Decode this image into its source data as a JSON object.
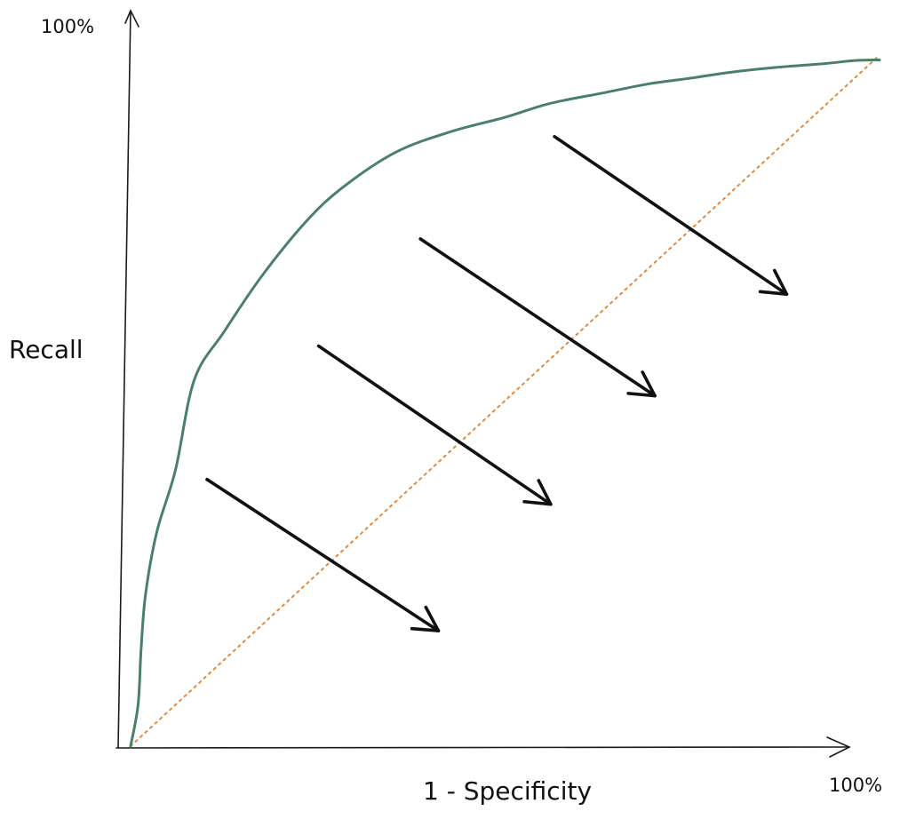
{
  "chart_data": {
    "type": "line",
    "xlabel": "1 - Specificity",
    "ylabel": "Recall",
    "x_tick_max_label": "100%",
    "y_tick_max_label": "100%",
    "xlim": [
      0,
      1
    ],
    "ylim": [
      0,
      1
    ],
    "grid": false,
    "series": [
      {
        "role": "roc-curve",
        "color": "#4a8068",
        "x": [
          0.0,
          0.01,
          0.014,
          0.02,
          0.035,
          0.06,
          0.085,
          0.125,
          0.175,
          0.235,
          0.285,
          0.355,
          0.43,
          0.5,
          0.56,
          0.63,
          0.69,
          0.75,
          0.8,
          0.86,
          0.93,
          0.965,
          1.0
        ],
        "y": [
          0.0,
          0.06,
          0.14,
          0.22,
          0.31,
          0.4,
          0.53,
          0.6,
          0.68,
          0.76,
          0.81,
          0.86,
          0.89,
          0.91,
          0.93,
          0.945,
          0.958,
          0.967,
          0.975,
          0.982,
          0.988,
          0.992,
          0.993
        ]
      },
      {
        "role": "diagonal-baseline",
        "color": "#e08a3c",
        "style": "dotted",
        "x": [
          0,
          1
        ],
        "y": [
          0,
          1
        ]
      }
    ],
    "arrows": [
      {
        "from": [
          0.102,
          0.386
        ],
        "to": [
          0.411,
          0.167
        ]
      },
      {
        "from": [
          0.251,
          0.579
        ],
        "to": [
          0.561,
          0.35
        ]
      },
      {
        "from": [
          0.387,
          0.734
        ],
        "to": [
          0.7,
          0.507
        ]
      },
      {
        "from": [
          0.566,
          0.882
        ],
        "to": [
          0.876,
          0.654
        ]
      }
    ],
    "colors": {
      "curve": "#4a8068",
      "diagonal": "#e08a3c",
      "axes": "#1a1a1a",
      "arrows": "#111111"
    }
  }
}
